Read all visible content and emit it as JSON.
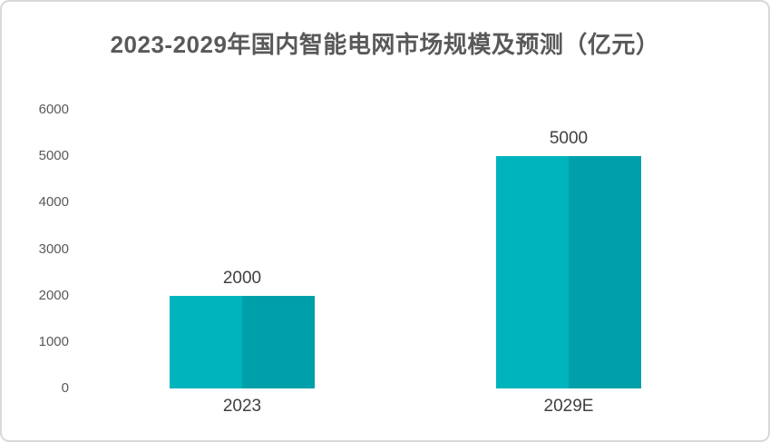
{
  "title": "2023-2029年国内智能电网市场规模及预测（亿元）",
  "chart_data": {
    "type": "bar",
    "title": "2023-2029年国内智能电网市场规模及预测（亿元）",
    "categories": [
      "2023",
      "2029E"
    ],
    "values": [
      2000,
      5000
    ],
    "data_labels": [
      "2000",
      "5000"
    ],
    "xlabel": "",
    "ylabel": "",
    "ylim": [
      0,
      6000
    ],
    "yticks": [
      0,
      1000,
      2000,
      3000,
      4000,
      5000,
      6000
    ],
    "grid": false,
    "legend": false,
    "axis_line": false,
    "colors": {
      "bar_left_half": "#00b4bd",
      "bar_right_half": "#00a0ab",
      "title_text": "#595959",
      "ytick_text": "#595959",
      "xtick_text": "#404040",
      "data_label_text": "#404040",
      "card_border": "#d9d9d9",
      "background": "#ffffff"
    }
  }
}
